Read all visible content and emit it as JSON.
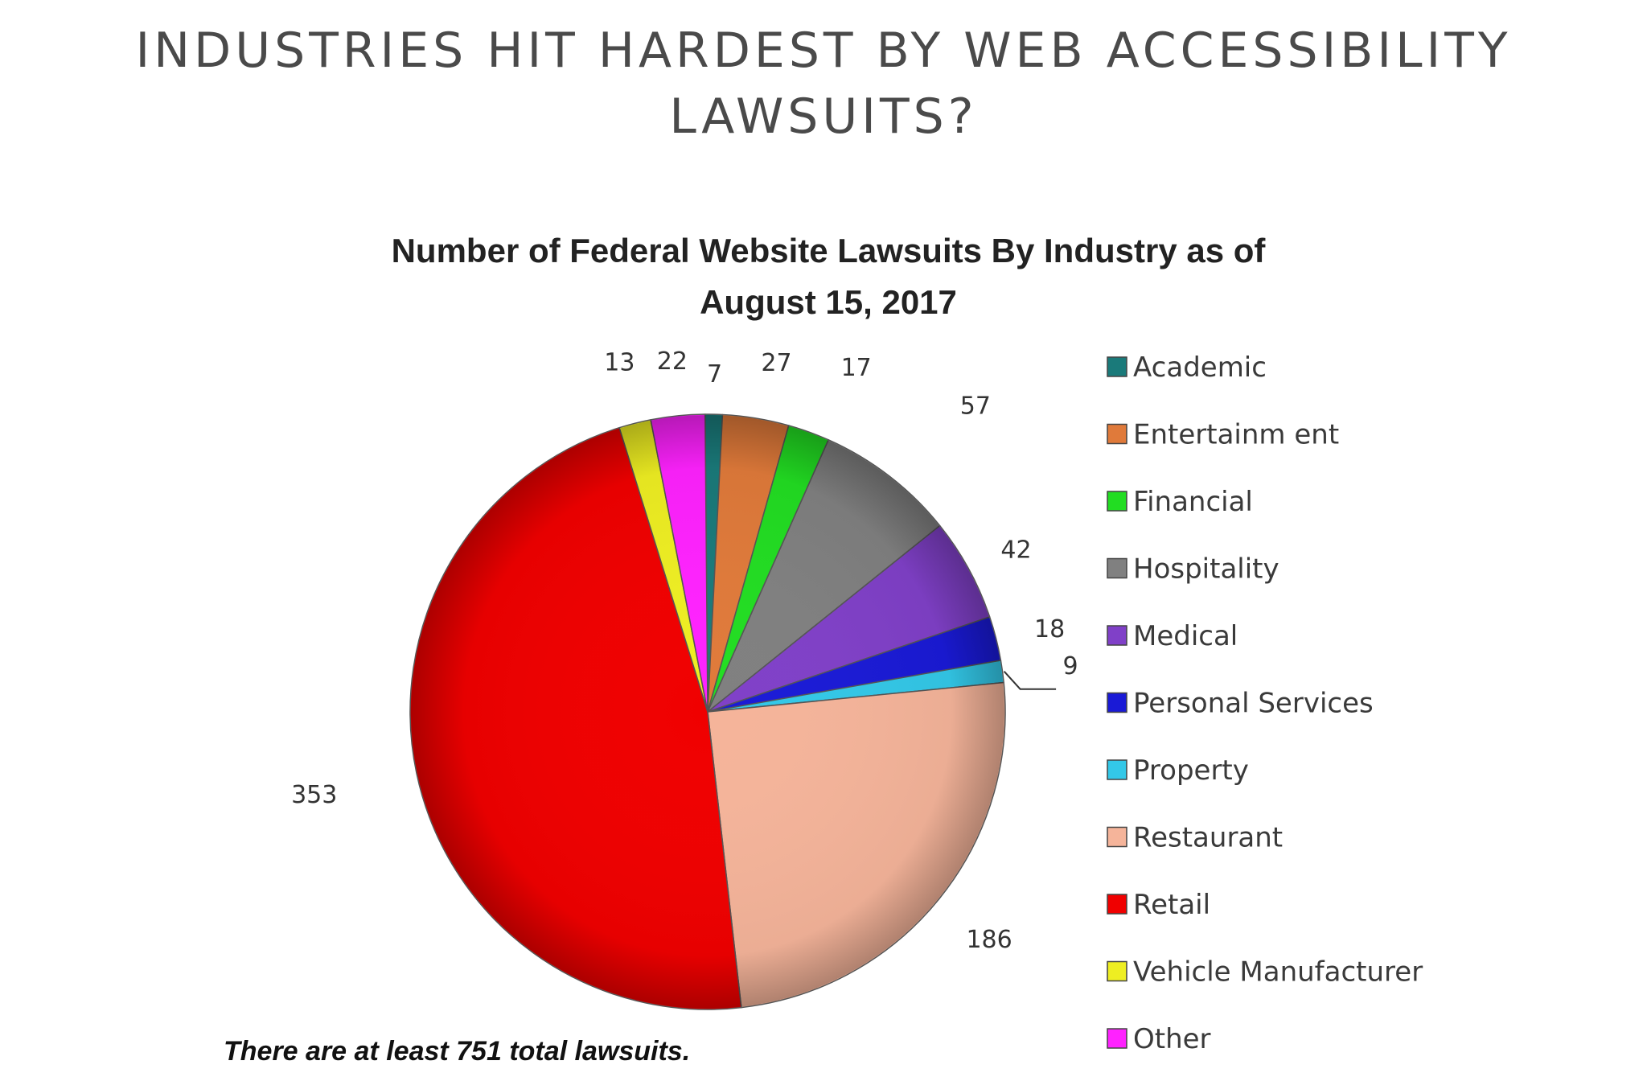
{
  "page": {
    "heading": "INDUSTRIES HIT HARDEST BY WEB ACCESSIBILITY LAWSUITS?"
  },
  "chart_data": {
    "type": "pie",
    "title_lines": [
      "Number of Federal Website Lawsuits By Industry as of",
      "August 15, 2017"
    ],
    "legend_placement": "right",
    "footnote": "There are at least 751 total lawsuits.",
    "slices": [
      {
        "label": "Academic",
        "value": 7,
        "color": "#1a7a7a"
      },
      {
        "label": "Entertainm ent",
        "value": 27,
        "color": "#e07a3a"
      },
      {
        "label": "Financial",
        "value": 17,
        "color": "#22dd22"
      },
      {
        "label": "Hospitality",
        "value": 57,
        "color": "#808080"
      },
      {
        "label": "Medical",
        "value": 42,
        "color": "#8040c8"
      },
      {
        "label": "Personal Services",
        "value": 18,
        "color": "#1a1ad6"
      },
      {
        "label": "Property",
        "value": 9,
        "color": "#33c8e8"
      },
      {
        "label": "Restaurant",
        "value": 186,
        "color": "#f5b49a"
      },
      {
        "label": "Retail",
        "value": 353,
        "color": "#f00000"
      },
      {
        "label": "Vehicle Manufacturer",
        "value": 13,
        "color": "#eeee22"
      },
      {
        "label": "Other",
        "value": 22,
        "color": "#ff22ff"
      }
    ]
  }
}
